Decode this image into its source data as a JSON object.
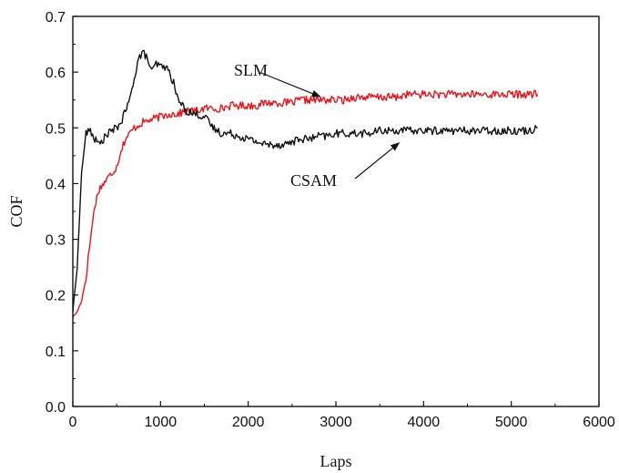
{
  "chart_data": {
    "type": "line",
    "title": "",
    "xlabel": "Laps",
    "ylabel": "COF",
    "xlim": [
      0,
      6000
    ],
    "ylim": [
      0.0,
      0.7
    ],
    "x_ticks": [
      "0",
      "1000",
      "2000",
      "3000",
      "4000",
      "5000",
      "6000"
    ],
    "y_ticks": [
      "0.0",
      "0.1",
      "0.2",
      "0.3",
      "0.4",
      "0.5",
      "0.6",
      "0.7"
    ],
    "grid": false,
    "legend": "none",
    "series": [
      {
        "name": "SLM",
        "color": "#e8141c",
        "x": [
          0,
          50,
          100,
          150,
          200,
          250,
          300,
          350,
          400,
          450,
          500,
          550,
          600,
          650,
          700,
          750,
          800,
          900,
          1000,
          1100,
          1200,
          1300,
          1400,
          1500,
          1600,
          1700,
          1800,
          1900,
          2000,
          2100,
          2200,
          2300,
          2400,
          2500,
          2600,
          2700,
          2800,
          2900,
          3000,
          3100,
          3200,
          3300,
          3400,
          3500,
          3600,
          3700,
          3800,
          3900,
          4000,
          4100,
          4200,
          4300,
          4400,
          4500,
          4600,
          4700,
          4800,
          4900,
          5000,
          5100,
          5200,
          5300
        ],
        "y": [
          0.16,
          0.17,
          0.19,
          0.23,
          0.3,
          0.36,
          0.39,
          0.4,
          0.41,
          0.42,
          0.43,
          0.46,
          0.48,
          0.49,
          0.5,
          0.505,
          0.51,
          0.515,
          0.52,
          0.525,
          0.525,
          0.53,
          0.53,
          0.535,
          0.535,
          0.535,
          0.54,
          0.54,
          0.54,
          0.54,
          0.545,
          0.545,
          0.545,
          0.545,
          0.55,
          0.55,
          0.55,
          0.55,
          0.55,
          0.55,
          0.555,
          0.555,
          0.555,
          0.555,
          0.555,
          0.555,
          0.56,
          0.56,
          0.56,
          0.56,
          0.56,
          0.56,
          0.56,
          0.56,
          0.56,
          0.56,
          0.56,
          0.56,
          0.56,
          0.56,
          0.56,
          0.56
        ]
      },
      {
        "name": "CSAM",
        "color": "#111111",
        "x": [
          0,
          50,
          100,
          150,
          200,
          250,
          300,
          350,
          400,
          450,
          500,
          550,
          600,
          650,
          700,
          750,
          800,
          850,
          900,
          950,
          1000,
          1050,
          1100,
          1150,
          1200,
          1300,
          1400,
          1500,
          1600,
          1700,
          1800,
          1900,
          2000,
          2100,
          2200,
          2300,
          2400,
          2500,
          2600,
          2700,
          2800,
          2900,
          3000,
          3100,
          3200,
          3300,
          3400,
          3500,
          3600,
          3700,
          3800,
          3900,
          4000,
          4100,
          4200,
          4300,
          4400,
          4500,
          4600,
          4700,
          4800,
          4900,
          5000,
          5100,
          5200,
          5300
        ],
        "y": [
          0.17,
          0.25,
          0.42,
          0.49,
          0.495,
          0.48,
          0.47,
          0.48,
          0.49,
          0.495,
          0.5,
          0.51,
          0.53,
          0.55,
          0.59,
          0.625,
          0.635,
          0.625,
          0.6,
          0.615,
          0.61,
          0.61,
          0.6,
          0.58,
          0.55,
          0.53,
          0.525,
          0.52,
          0.5,
          0.49,
          0.49,
          0.485,
          0.48,
          0.475,
          0.47,
          0.47,
          0.47,
          0.475,
          0.48,
          0.48,
          0.485,
          0.485,
          0.49,
          0.49,
          0.49,
          0.49,
          0.49,
          0.495,
          0.495,
          0.495,
          0.495,
          0.495,
          0.495,
          0.495,
          0.495,
          0.495,
          0.495,
          0.495,
          0.495,
          0.495,
          0.495,
          0.495,
          0.495,
          0.495,
          0.495,
          0.5
        ]
      }
    ],
    "annotations": [
      {
        "text": "SLM",
        "series": "SLM",
        "target_x": 2820,
        "target_y": 0.556
      },
      {
        "text": "CSAM",
        "series": "CSAM",
        "target_x": 3720,
        "target_y": 0.473
      }
    ]
  }
}
